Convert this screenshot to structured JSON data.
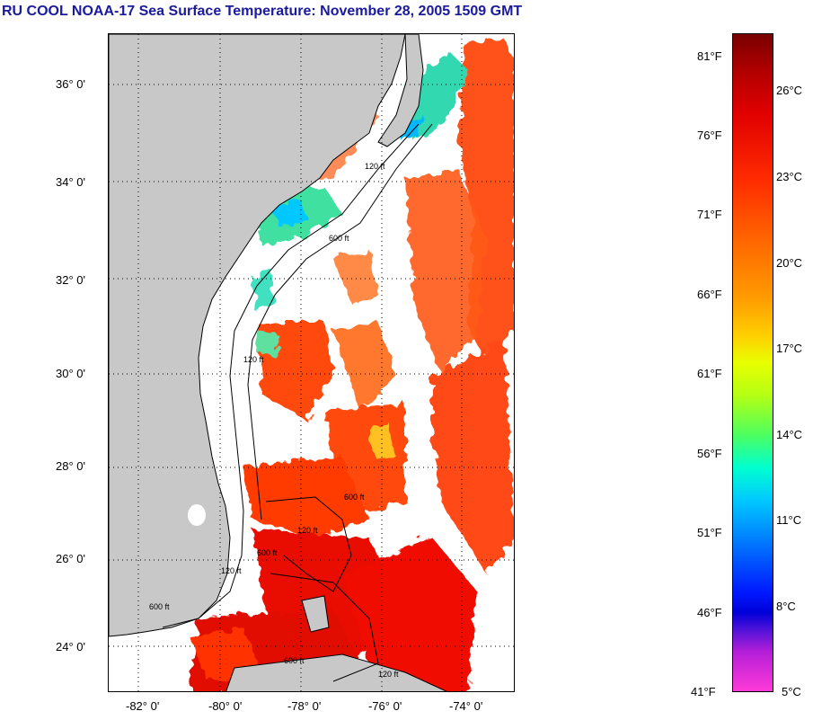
{
  "title": "RU COOL  NOAA-17  Sea Surface Temperature:  November 28, 2005 1509 GMT",
  "map": {
    "lat_labels": [
      "36° 0'",
      "34° 0'",
      "32° 0'",
      "30° 0'",
      "28° 0'",
      "26° 0'",
      "24° 0'"
    ],
    "lon_labels": [
      "-82° 0'",
      "-80° 0'",
      "-78° 0'",
      "-76° 0'",
      "-74° 0'"
    ],
    "contour_labels": [
      "120 ft",
      "600 ft",
      "120 ft",
      "600 ft",
      "120 ft",
      "600 ft",
      "120 ft",
      "600 ft",
      "120 ft",
      "600 ft"
    ],
    "colors": {
      "land": "#c8c8c8",
      "cloud": "#ffffff",
      "warm": "#ff3a00",
      "hot": "#e00000",
      "cool": "#00d0ff",
      "mild": "#60ff80"
    }
  },
  "colorbar": {
    "fahrenheit": [
      "81°F",
      "76°F",
      "71°F",
      "66°F",
      "61°F",
      "56°F",
      "51°F",
      "46°F",
      "41°F"
    ],
    "celsius": [
      "26°C",
      "23°C",
      "20°C",
      "17°C",
      "14°C",
      "11°C",
      "8°C",
      "5°C"
    ]
  }
}
